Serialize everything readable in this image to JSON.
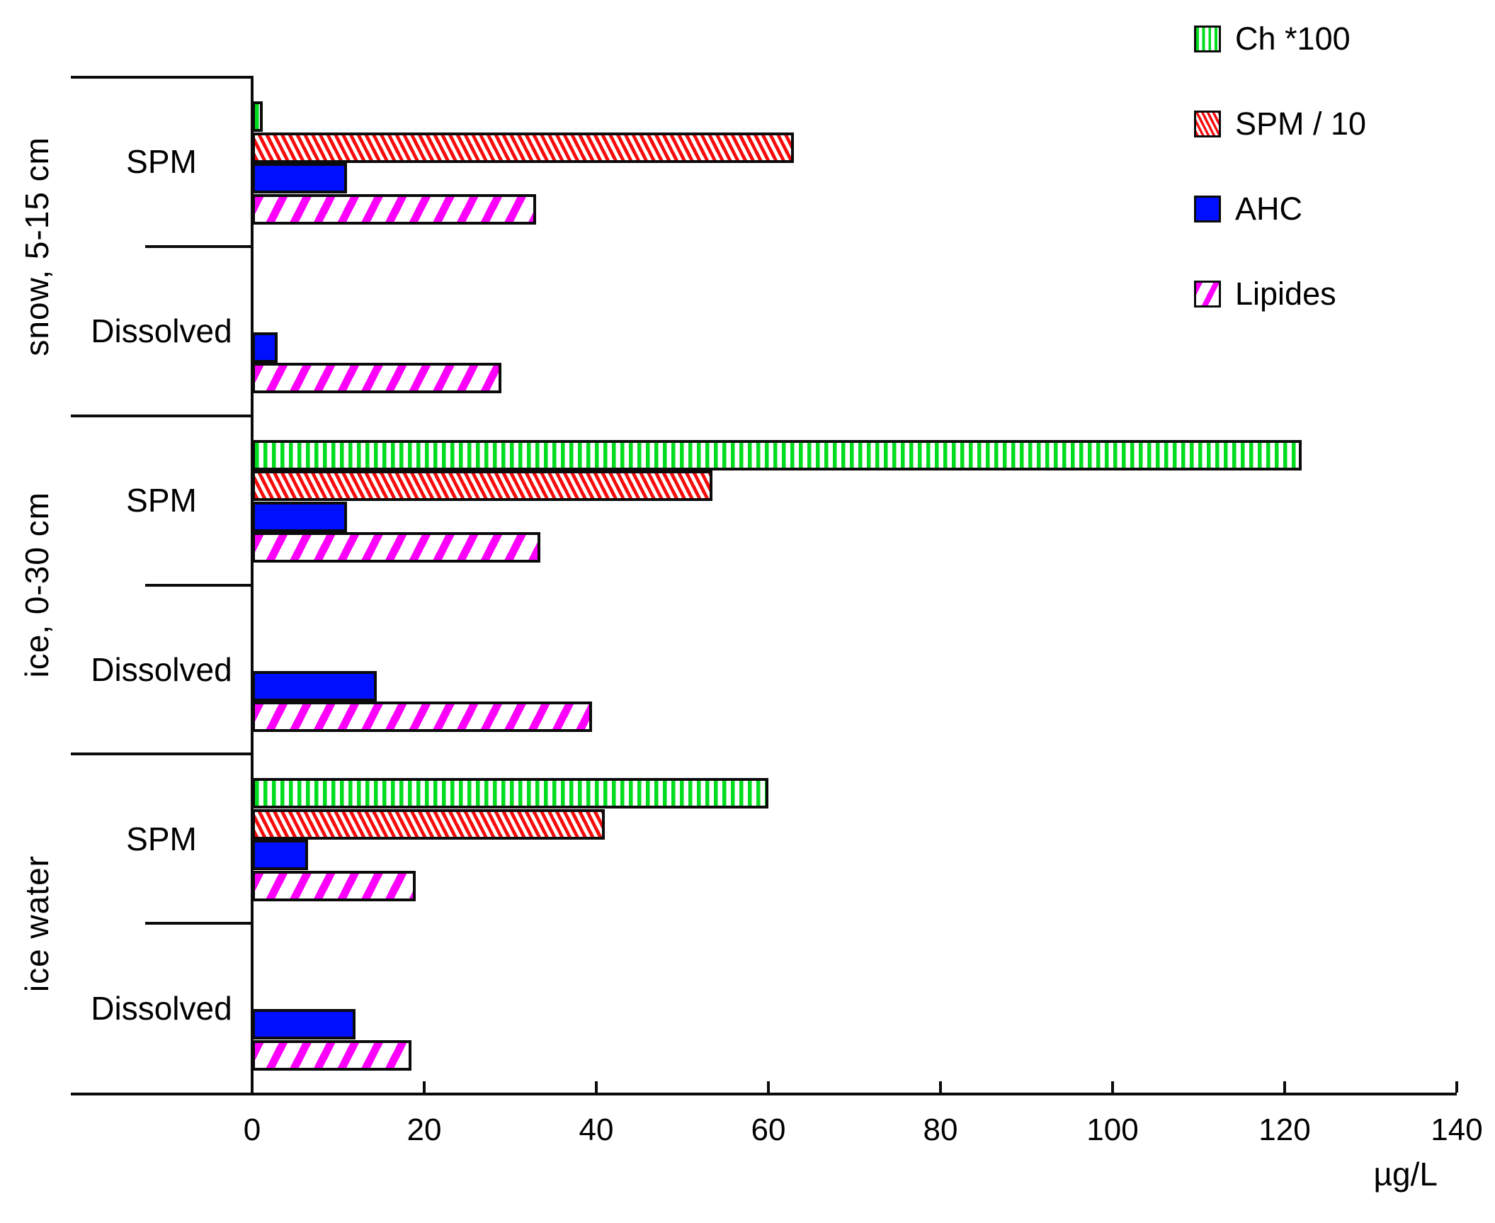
{
  "chart_data": {
    "type": "bar",
    "orientation": "horizontal",
    "xlabel": "µg/L",
    "xlim": [
      0,
      140
    ],
    "xtick_labels": [
      "0",
      "20",
      "40",
      "60",
      "80",
      "100",
      "120",
      "140"
    ],
    "grid": false,
    "legend_position": "top-right",
    "series": [
      {
        "name": "Ch *100",
        "color": "#00dc1e",
        "pattern": "vertical-stripes"
      },
      {
        "name": "SPM / 10",
        "color": "#f80c0c",
        "pattern": "diagonal-stripes-down"
      },
      {
        "name": "AHC",
        "color": "#0010ff",
        "pattern": "solid"
      },
      {
        "name": "Lipides",
        "color": "#fc00fc",
        "pattern": "diagonal-stripes-up"
      }
    ],
    "sections": [
      {
        "label": "snow, 5-15 cm"
      },
      {
        "label": "ice, 0-30 cm"
      },
      {
        "label": "ice water"
      }
    ],
    "groups": [
      {
        "section": "snow, 5-15 cm",
        "phase": "SPM",
        "values": [
          1.2,
          63,
          11,
          33
        ]
      },
      {
        "section": "snow, 5-15 cm",
        "phase": "Dissolved",
        "values": [
          null,
          null,
          3,
          29
        ]
      },
      {
        "section": "ice, 0-30 cm",
        "phase": "SPM",
        "values": [
          122,
          53.5,
          11,
          33.5
        ]
      },
      {
        "section": "ice, 0-30 cm",
        "phase": "Dissolved",
        "values": [
          null,
          null,
          14.5,
          39.5
        ]
      },
      {
        "section": "ice water",
        "phase": "SPM",
        "values": [
          60,
          41,
          6.5,
          19
        ]
      },
      {
        "section": "ice water",
        "phase": "Dissolved",
        "values": [
          null,
          null,
          12,
          18.5
        ]
      }
    ]
  }
}
